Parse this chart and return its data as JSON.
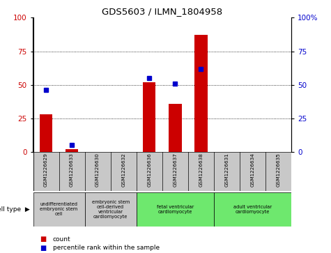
{
  "title": "GDS5603 / ILMN_1804958",
  "samples": [
    "GSM1226629",
    "GSM1226633",
    "GSM1226630",
    "GSM1226632",
    "GSM1226636",
    "GSM1226637",
    "GSM1226638",
    "GSM1226631",
    "GSM1226634",
    "GSM1226635"
  ],
  "count_values": [
    28,
    2,
    0,
    0,
    52,
    36,
    87,
    0,
    0,
    0
  ],
  "percentile_values": [
    46,
    5,
    0,
    0,
    55,
    51,
    62,
    0,
    0,
    0
  ],
  "cell_types": [
    {
      "label": "undifferentiated\nembryonic stem\ncell",
      "start": 0,
      "end": 2,
      "color": "#c8c8c8"
    },
    {
      "label": "embryonic stem\ncell-derived\nventricular\ncardiomyocyte",
      "start": 2,
      "end": 4,
      "color": "#c8c8c8"
    },
    {
      "label": "fetal ventricular\ncardiomyocyte",
      "start": 4,
      "end": 7,
      "color": "#6ee86e"
    },
    {
      "label": "adult ventricular\ncardiomyocyte",
      "start": 7,
      "end": 10,
      "color": "#6ee86e"
    }
  ],
  "bar_color": "#cc0000",
  "dot_color": "#0000cc",
  "left_ylim": [
    0,
    100
  ],
  "right_ylim": [
    0,
    100
  ],
  "grid_values": [
    0,
    25,
    50,
    75,
    100
  ],
  "right_tick_labels": [
    "0",
    "25",
    "50",
    "75",
    "100%"
  ],
  "sample_bg_color": "#c8c8c8",
  "cell_type_label": "cell type",
  "legend_count_label": "count",
  "legend_pct_label": "percentile rank within the sample"
}
